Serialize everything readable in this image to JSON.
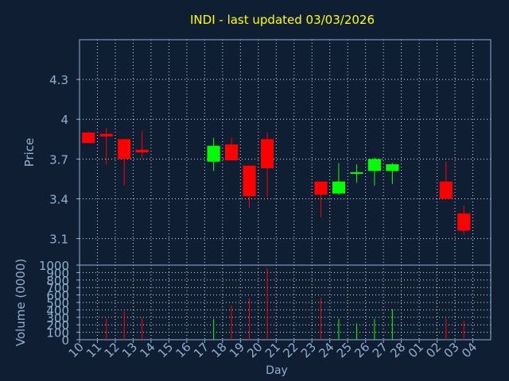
{
  "chart_data": {
    "type": "candlestick",
    "title": "INDI - last updated 03/03/2026",
    "xlabel": "Day",
    "ylabel": "Price",
    "volume_label": "Volume (0000)",
    "x_ticks": [
      "10",
      "11",
      "12",
      "13",
      "14",
      "15",
      "16",
      "17",
      "18",
      "19",
      "20",
      "21",
      "22",
      "23",
      "24",
      "25",
      "26",
      "27",
      "28",
      "01",
      "02",
      "03",
      "04"
    ],
    "price_ylim": [
      2.9,
      4.6
    ],
    "price_ticks": [
      "3.1",
      "3.4",
      "3.7",
      "4",
      "4.3"
    ],
    "volume_ylim": [
      0,
      1000
    ],
    "volume_ticks": [
      "0",
      "100",
      "200",
      "300",
      "400",
      "500",
      "600",
      "700",
      "800",
      "900",
      "1000"
    ],
    "grid": true,
    "colors": {
      "up": "#00ff00",
      "down": "#ff0000",
      "background": "#0f1e33",
      "axis": "#8fb0d0",
      "title": "#ffff00",
      "grid": "#ffffff"
    },
    "candles": [
      {
        "day": "10",
        "open": 3.9,
        "high": 3.91,
        "low": 3.82,
        "close": 3.82,
        "volume": 0
      },
      {
        "day": "11",
        "open": 3.89,
        "high": 3.93,
        "low": 3.66,
        "close": 3.87,
        "volume": 280
      },
      {
        "day": "12",
        "open": 3.85,
        "high": 3.85,
        "low": 3.5,
        "close": 3.7,
        "volume": 380
      },
      {
        "day": "13",
        "open": 3.77,
        "high": 3.91,
        "low": 3.71,
        "close": 3.75,
        "volume": 290
      },
      {
        "day": "17",
        "open": 3.68,
        "high": 3.86,
        "low": 3.61,
        "close": 3.8,
        "volume": 280
      },
      {
        "day": "18",
        "open": 3.81,
        "high": 3.86,
        "low": 3.69,
        "close": 3.69,
        "volume": 460
      },
      {
        "day": "19",
        "open": 3.65,
        "high": 3.65,
        "low": 3.33,
        "close": 3.42,
        "volume": 560
      },
      {
        "day": "20",
        "open": 3.85,
        "high": 3.9,
        "low": 3.41,
        "close": 3.63,
        "volume": 960
      },
      {
        "day": "23",
        "open": 3.53,
        "high": 3.53,
        "low": 3.26,
        "close": 3.43,
        "volume": 560
      },
      {
        "day": "24",
        "open": 3.44,
        "high": 3.67,
        "low": 3.43,
        "close": 3.53,
        "volume": 280
      },
      {
        "day": "25",
        "open": 3.59,
        "high": 3.66,
        "low": 3.52,
        "close": 3.6,
        "volume": 220
      },
      {
        "day": "26",
        "open": 3.61,
        "high": 3.71,
        "low": 3.5,
        "close": 3.7,
        "volume": 280
      },
      {
        "day": "27",
        "open": 3.61,
        "high": 3.67,
        "low": 3.51,
        "close": 3.66,
        "volume": 410
      },
      {
        "day": "02",
        "open": 3.53,
        "high": 3.68,
        "low": 3.39,
        "close": 3.4,
        "volume": 280
      },
      {
        "day": "03",
        "open": 3.29,
        "high": 3.35,
        "low": 3.13,
        "close": 3.16,
        "volume": 250
      }
    ]
  }
}
